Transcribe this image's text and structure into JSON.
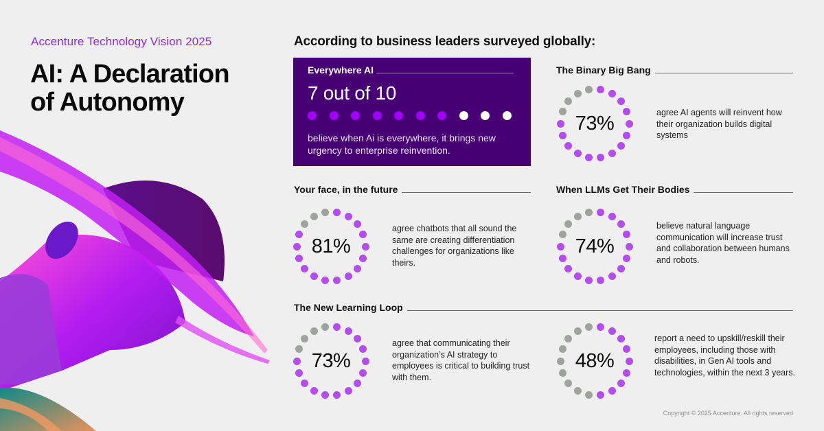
{
  "colors": {
    "background": "#efefef",
    "hero_bg": "#460073",
    "hero_dot_on": "#a100ff",
    "hero_dot_off": "#ffffff",
    "ring_on": "#b34ded",
    "ring_off": "#9ea39d",
    "eyebrow": "#8a2be2"
  },
  "header": {
    "eyebrow": "Accenture Technology Vision 2025",
    "title_line1": "AI: A Declaration",
    "title_line2": "of Autonomy"
  },
  "intro": "According to business leaders surveyed globally:",
  "hero": {
    "title": "Everywhere AI",
    "stat": "7 out of 10",
    "filled": 7,
    "total": 10,
    "description": "believe when Ai is everywhere, it brings new urgency to enterprise reinvention."
  },
  "cards": [
    {
      "title": "The Binary Big Bang",
      "percent_label": "73%",
      "percent": 73,
      "gray_dots": 4,
      "description": "agree AI agents will reinvent how their organization builds digital systems"
    },
    {
      "title": "Your face, in the future",
      "percent_label": "81%",
      "percent": 81,
      "gray_dots": 3,
      "description": "agree chatbots that all sound the same are creating differentiation challenges for organizations like theirs."
    },
    {
      "title": "When LLMs Get Their Bodies",
      "percent_label": "74%",
      "percent": 74,
      "gray_dots": 4,
      "description": "believe natural language communication will increase trust and collaboration between humans and robots."
    },
    {
      "title": "The New Learning Loop",
      "percent_label": "73%",
      "percent": 73,
      "gray_dots": 4,
      "description": "agree that communicating their organization’s AI strategy to employees is critical to building trust with them."
    },
    {
      "title": "",
      "percent_label": "48%",
      "percent": 48,
      "gray_dots": 9,
      "description": "report a need to upskill/reskill their employees, including those with disabilities, in Gen AI tools and technologies, within the next 3 years."
    }
  ],
  "ring_total_dots": 18,
  "copyright": "Copyright © 2025 Accenture. All rights reserved",
  "chart_data": {
    "type": "table",
    "title": "According to business leaders surveyed globally",
    "categories": [
      "Everywhere AI",
      "The Binary Big Bang",
      "Your face, in the future",
      "When LLMs Get Their Bodies",
      "The New Learning Loop (communication)",
      "The New Learning Loop (upskill/reskill)"
    ],
    "values": [
      70,
      73,
      81,
      74,
      73,
      48
    ],
    "unit": "%"
  }
}
